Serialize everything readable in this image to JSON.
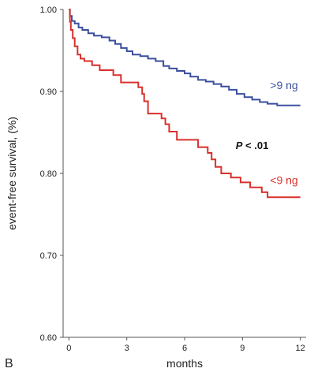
{
  "chart_data": {
    "type": "line",
    "panel_label": "B",
    "xlabel": "months",
    "ylabel": "event-free survival, (%)",
    "xlim": [
      -0.3,
      12.3
    ],
    "ylim": [
      0.6,
      1.0
    ],
    "x_ticks": [
      0,
      3,
      6,
      9,
      12
    ],
    "x_tick_labels": [
      "0",
      "3",
      "6",
      "9",
      "12"
    ],
    "y_ticks": [
      0.6,
      0.7,
      0.8,
      0.9,
      1.0
    ],
    "y_tick_labels": [
      "0.60",
      "0.70",
      "0.80",
      "0.90",
      "1.00"
    ],
    "grid": false,
    "series": [
      {
        "name": ">9 ng",
        "color": "#3a4f9e",
        "step": true,
        "points": [
          [
            0,
            1.0
          ],
          [
            0.05,
            0.992
          ],
          [
            0.15,
            0.986
          ],
          [
            0.3,
            0.983
          ],
          [
            0.5,
            0.978
          ],
          [
            0.7,
            0.975
          ],
          [
            1.0,
            0.971
          ],
          [
            1.3,
            0.968
          ],
          [
            1.7,
            0.966
          ],
          [
            2.1,
            0.962
          ],
          [
            2.4,
            0.958
          ],
          [
            2.7,
            0.953
          ],
          [
            3.0,
            0.949
          ],
          [
            3.3,
            0.945
          ],
          [
            3.7,
            0.943
          ],
          [
            4.1,
            0.94
          ],
          [
            4.5,
            0.937
          ],
          [
            4.9,
            0.931
          ],
          [
            5.2,
            0.928
          ],
          [
            5.6,
            0.925
          ],
          [
            6.0,
            0.922
          ],
          [
            6.3,
            0.918
          ],
          [
            6.7,
            0.914
          ],
          [
            7.1,
            0.912
          ],
          [
            7.5,
            0.909
          ],
          [
            7.9,
            0.906
          ],
          [
            8.3,
            0.902
          ],
          [
            8.7,
            0.897
          ],
          [
            9.1,
            0.893
          ],
          [
            9.5,
            0.89
          ],
          [
            9.9,
            0.887
          ],
          [
            10.3,
            0.885
          ],
          [
            10.8,
            0.883
          ],
          [
            12.0,
            0.883
          ]
        ]
      },
      {
        "name": "<9 ng",
        "color": "#d9302c",
        "step": true,
        "points": [
          [
            0,
            1.0
          ],
          [
            0.05,
            0.985
          ],
          [
            0.1,
            0.975
          ],
          [
            0.2,
            0.965
          ],
          [
            0.3,
            0.955
          ],
          [
            0.45,
            0.945
          ],
          [
            0.6,
            0.94
          ],
          [
            0.8,
            0.937
          ],
          [
            1.2,
            0.932
          ],
          [
            1.6,
            0.926
          ],
          [
            2.3,
            0.92
          ],
          [
            2.7,
            0.911
          ],
          [
            3.6,
            0.905
          ],
          [
            3.8,
            0.897
          ],
          [
            3.9,
            0.888
          ],
          [
            4.1,
            0.873
          ],
          [
            4.8,
            0.867
          ],
          [
            5.0,
            0.86
          ],
          [
            5.2,
            0.851
          ],
          [
            5.6,
            0.841
          ],
          [
            6.7,
            0.832
          ],
          [
            7.2,
            0.825
          ],
          [
            7.4,
            0.817
          ],
          [
            7.6,
            0.808
          ],
          [
            7.9,
            0.8
          ],
          [
            8.4,
            0.795
          ],
          [
            8.9,
            0.789
          ],
          [
            9.4,
            0.783
          ],
          [
            10.0,
            0.777
          ],
          [
            10.3,
            0.771
          ],
          [
            12.0,
            0.771
          ]
        ]
      }
    ],
    "annotations": [
      {
        "italic": "P",
        "text": " < .01",
        "x": 9.5,
        "y": 0.83
      }
    ]
  }
}
